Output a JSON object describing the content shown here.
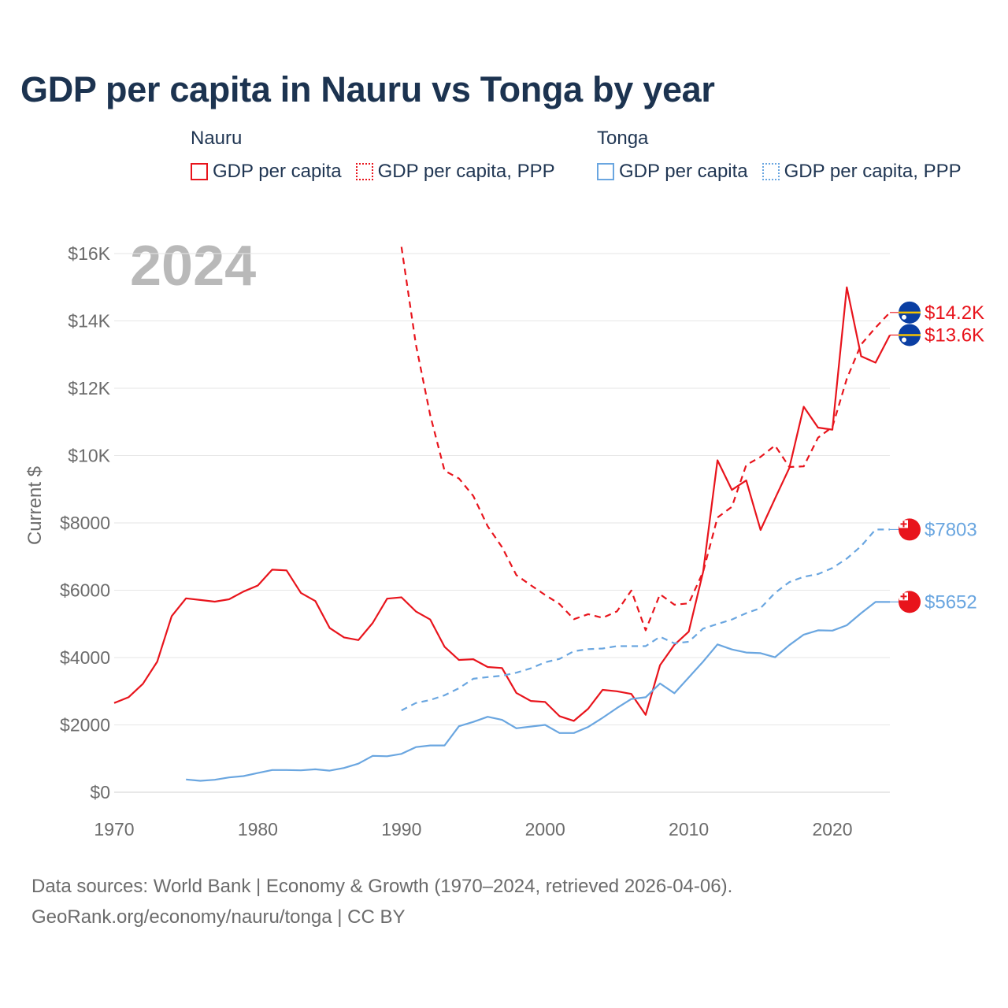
{
  "title": "GDP per capita in Nauru vs Tonga by year",
  "legend": {
    "groups": [
      {
        "country": "Nauru",
        "color": "#e8141c",
        "items": [
          {
            "label": "GDP per capita",
            "style": "solid"
          },
          {
            "label": "GDP per capita, PPP",
            "style": "dotted"
          }
        ]
      },
      {
        "country": "Tonga",
        "color": "#6aa6e0",
        "items": [
          {
            "label": "GDP per capita",
            "style": "solid"
          },
          {
            "label": "GDP per capita, PPP",
            "style": "dotted"
          }
        ]
      }
    ]
  },
  "year_label": "2024",
  "flags": {
    "nauru": "nauru-flag-icon",
    "tonga": "tonga-flag-icon"
  },
  "footer": {
    "line1": "Data sources: World Bank | Economy & Growth (1970–2024, retrieved 2026-04-06).",
    "line2": "GeoRank.org/economy/nauru/tonga | CC BY"
  },
  "chart_data": {
    "type": "line",
    "title": "GDP per capita in Nauru vs Tonga by year",
    "xlabel": "",
    "ylabel": "Current $",
    "xlim": [
      1970,
      2024
    ],
    "ylim": [
      0,
      16000
    ],
    "x_ticks": [
      1970,
      1980,
      1990,
      2000,
      2010,
      2020
    ],
    "x_tick_labels": [
      "1970",
      "1980",
      "1990",
      "2000",
      "2010",
      "2020"
    ],
    "y_ticks": [
      0,
      2000,
      4000,
      6000,
      8000,
      10000,
      12000,
      14000,
      16000
    ],
    "y_tick_labels": [
      "$0",
      "$2000",
      "$4000",
      "$6000",
      "$8000",
      "$10K",
      "$12K",
      "$14K",
      "$16K"
    ],
    "grid": true,
    "series": [
      {
        "name": "Nauru GDP per capita",
        "country": "Nauru",
        "color": "#e8141c",
        "style": "solid",
        "end_label": "$13.6K",
        "x": [
          1970,
          1971,
          1972,
          1973,
          1974,
          1975,
          1976,
          1977,
          1978,
          1979,
          1980,
          1981,
          1982,
          1983,
          1984,
          1985,
          1986,
          1987,
          1988,
          1989,
          1990,
          1991,
          1992,
          1993,
          1994,
          1995,
          1996,
          1997,
          1998,
          1999,
          2000,
          2001,
          2002,
          2003,
          2004,
          2005,
          2006,
          2007,
          2008,
          2009,
          2010,
          2011,
          2012,
          2013,
          2014,
          2015,
          2016,
          2017,
          2018,
          2019,
          2020,
          2021,
          2022,
          2023,
          2024
        ],
        "values": [
          2650,
          2820,
          3220,
          3880,
          5230,
          5760,
          5710,
          5660,
          5730,
          5960,
          6140,
          6610,
          6590,
          5920,
          5680,
          4880,
          4600,
          4520,
          5030,
          5750,
          5790,
          5370,
          5130,
          4320,
          3930,
          3950,
          3720,
          3690,
          2950,
          2710,
          2680,
          2260,
          2120,
          2480,
          3040,
          3000,
          2920,
          2300,
          3770,
          4380,
          4770,
          6550,
          9860,
          8980,
          9260,
          7790,
          8720,
          9630,
          11450,
          10830,
          10770,
          15000,
          12950,
          12760,
          13580
        ]
      },
      {
        "name": "Nauru GDP per capita, PPP",
        "country": "Nauru",
        "color": "#e8141c",
        "style": "dashed",
        "end_label": "$14.2K",
        "x": [
          1990,
          1991,
          1992,
          1993,
          1994,
          1995,
          1996,
          1997,
          1998,
          1999,
          2000,
          2001,
          2002,
          2003,
          2004,
          2005,
          2006,
          2007,
          2008,
          2009,
          2010,
          2011,
          2012,
          2013,
          2014,
          2015,
          2016,
          2017,
          2018,
          2019,
          2020,
          2021,
          2022,
          2023,
          2024
        ],
        "values": [
          16200,
          13300,
          11200,
          9550,
          9320,
          8800,
          7900,
          7280,
          6450,
          6150,
          5860,
          5590,
          5140,
          5290,
          5180,
          5370,
          5990,
          4810,
          5880,
          5570,
          5610,
          6550,
          8160,
          8480,
          9720,
          9960,
          10300,
          9660,
          9680,
          10530,
          10850,
          12280,
          13300,
          13800,
          14250
        ]
      },
      {
        "name": "Tonga GDP per capita",
        "country": "Tonga",
        "color": "#6aa6e0",
        "style": "solid",
        "end_label": "$5652",
        "x": [
          1975,
          1976,
          1977,
          1978,
          1979,
          1980,
          1981,
          1982,
          1983,
          1984,
          1985,
          1986,
          1987,
          1988,
          1989,
          1990,
          1991,
          1992,
          1993,
          1994,
          1995,
          1996,
          1997,
          1998,
          1999,
          2000,
          2001,
          2002,
          2003,
          2004,
          2005,
          2006,
          2007,
          2008,
          2009,
          2010,
          2011,
          2012,
          2013,
          2014,
          2015,
          2016,
          2017,
          2018,
          2019,
          2020,
          2021,
          2022,
          2023,
          2024
        ],
        "values": [
          380,
          340,
          370,
          440,
          480,
          570,
          660,
          660,
          650,
          680,
          640,
          720,
          850,
          1080,
          1070,
          1140,
          1340,
          1390,
          1390,
          1960,
          2090,
          2240,
          2150,
          1900,
          1950,
          2000,
          1760,
          1760,
          1940,
          2210,
          2500,
          2770,
          2820,
          3230,
          2940,
          3410,
          3880,
          4390,
          4240,
          4150,
          4130,
          4010,
          4370,
          4680,
          4810,
          4800,
          4960,
          5320,
          5652,
          5652
        ]
      },
      {
        "name": "Tonga GDP per capita, PPP",
        "country": "Tonga",
        "color": "#6aa6e0",
        "style": "dashed",
        "end_label": "$7803",
        "x": [
          1990,
          1991,
          1992,
          1993,
          1994,
          1995,
          1996,
          1997,
          1998,
          1999,
          2000,
          2001,
          2002,
          2003,
          2004,
          2005,
          2006,
          2007,
          2008,
          2009,
          2010,
          2011,
          2012,
          2013,
          2014,
          2015,
          2016,
          2017,
          2018,
          2019,
          2020,
          2021,
          2022,
          2023,
          2024
        ],
        "values": [
          2430,
          2650,
          2740,
          2880,
          3090,
          3370,
          3420,
          3460,
          3550,
          3680,
          3860,
          3960,
          4190,
          4250,
          4270,
          4340,
          4340,
          4340,
          4620,
          4420,
          4470,
          4860,
          5000,
          5130,
          5320,
          5470,
          5920,
          6240,
          6400,
          6480,
          6660,
          6940,
          7310,
          7803,
          7803
        ]
      }
    ]
  }
}
